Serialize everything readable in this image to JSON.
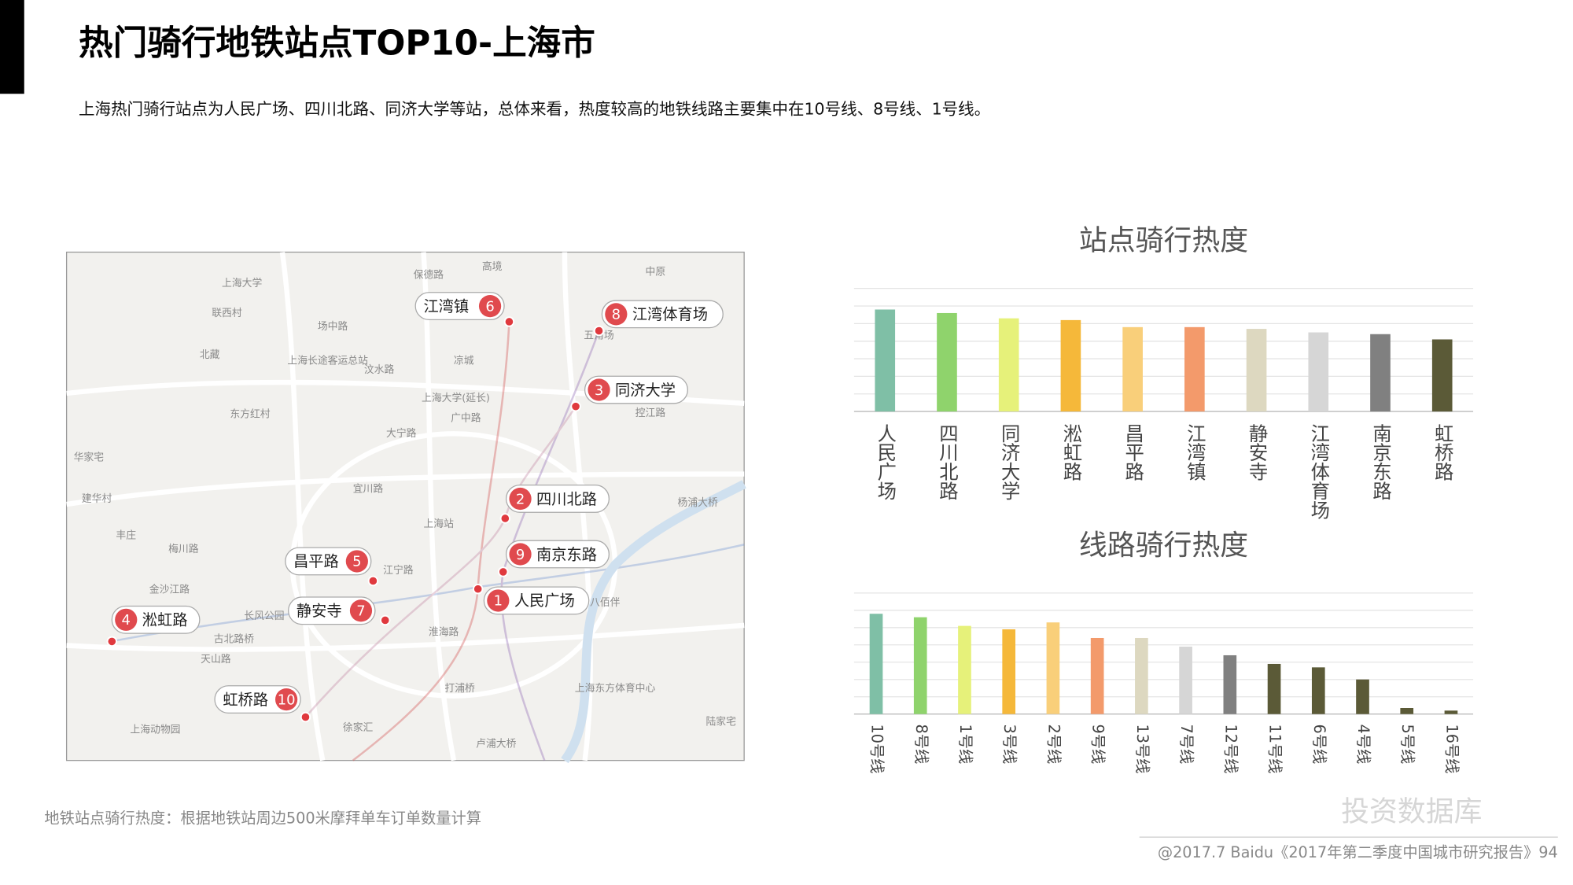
{
  "header": {
    "title": "热门骑行地铁站点TOP10-上海市",
    "subtitle": "上海热门骑行站点为人民广场、四川北路、同济大学等站，总体来看，热度较高的地铁线路主要集中在10号线、8号线、1号线。"
  },
  "map": {
    "pins": [
      {
        "number": 6,
        "name": "江湾镇"
      },
      {
        "number": 8,
        "name": "江湾体育场"
      },
      {
        "number": 3,
        "name": "同济大学"
      },
      {
        "number": 2,
        "name": "四川北路"
      },
      {
        "number": 9,
        "name": "南京东路"
      },
      {
        "number": 1,
        "name": "人民广场"
      },
      {
        "number": 5,
        "name": "昌平路"
      },
      {
        "number": 7,
        "name": "静安寺"
      },
      {
        "number": 4,
        "name": "淞虹路"
      },
      {
        "number": 10,
        "name": "虹桥路"
      }
    ],
    "places": [
      "上海大学",
      "联西村",
      "场中路",
      "北藏",
      "上海长途客运总站",
      "汶水路",
      "上海大学(延长)",
      "广中路",
      "大宁路",
      "东方红村",
      "华家宅",
      "宜川路",
      "上海站",
      "建华村",
      "丰庄",
      "梅川路",
      "江宁路",
      "金沙江路",
      "长风公园",
      "古北路桥",
      "天山路",
      "上海动物园",
      "徐家汇",
      "淮海路",
      "打浦桥",
      "八佰伴",
      "卢浦大桥",
      "杨浦大桥",
      "控江路",
      "五角场",
      "凉城",
      "保德路",
      "高境",
      "中原",
      "上海东方体育中心",
      "陆家宅"
    ]
  },
  "chart_data": [
    {
      "type": "bar",
      "title": "站点骑行热度",
      "categories": [
        "人民广场",
        "四川北路",
        "同济大学",
        "淞虹路",
        "昌平路",
        "江湾镇",
        "静安寺",
        "江湾体育场",
        "南京东路",
        "虹桥路"
      ],
      "values": [
        5.8,
        5.6,
        5.3,
        5.2,
        4.8,
        4.8,
        4.7,
        4.5,
        4.4,
        4.1
      ],
      "colors": [
        "#7fbfa6",
        "#8fd36c",
        "#e6f17a",
        "#f5b83a",
        "#f9cf7a",
        "#f39a6b",
        "#ddd8c0",
        "#d6d6d6",
        "#808080",
        "#5b5a37"
      ],
      "ylim": [
        0,
        7
      ],
      "grid": true
    },
    {
      "type": "bar",
      "title": "线路骑行热度",
      "categories": [
        "10号线",
        "8号线",
        "1号线",
        "3号线",
        "2号线",
        "9号线",
        "13号线",
        "7号线",
        "12号线",
        "11号线",
        "6号线",
        "4号线",
        "5号线",
        "16号线"
      ],
      "values": [
        5.8,
        5.6,
        5.1,
        4.9,
        5.3,
        4.4,
        4.4,
        3.9,
        3.4,
        2.9,
        2.7,
        2.0,
        0.35,
        0.2
      ],
      "colors": [
        "#7fbfa6",
        "#8fd36c",
        "#e6f17a",
        "#f5b83a",
        "#f9cf7a",
        "#f39a6b",
        "#ddd8c0",
        "#d6d6d6",
        "#808080",
        "#5b5a37",
        "#5b5a37",
        "#5b5a37",
        "#5b5a37",
        "#5b5a37"
      ],
      "ylim": [
        0,
        7
      ],
      "grid": true
    }
  ],
  "footer": {
    "note": "地铁站点骑行热度：根据地铁站周边500米摩拜单车订单数量计算",
    "watermark": "投资数据库",
    "source": "@2017.7 Baidu《2017年第二季度中国城市研究报告》94"
  }
}
